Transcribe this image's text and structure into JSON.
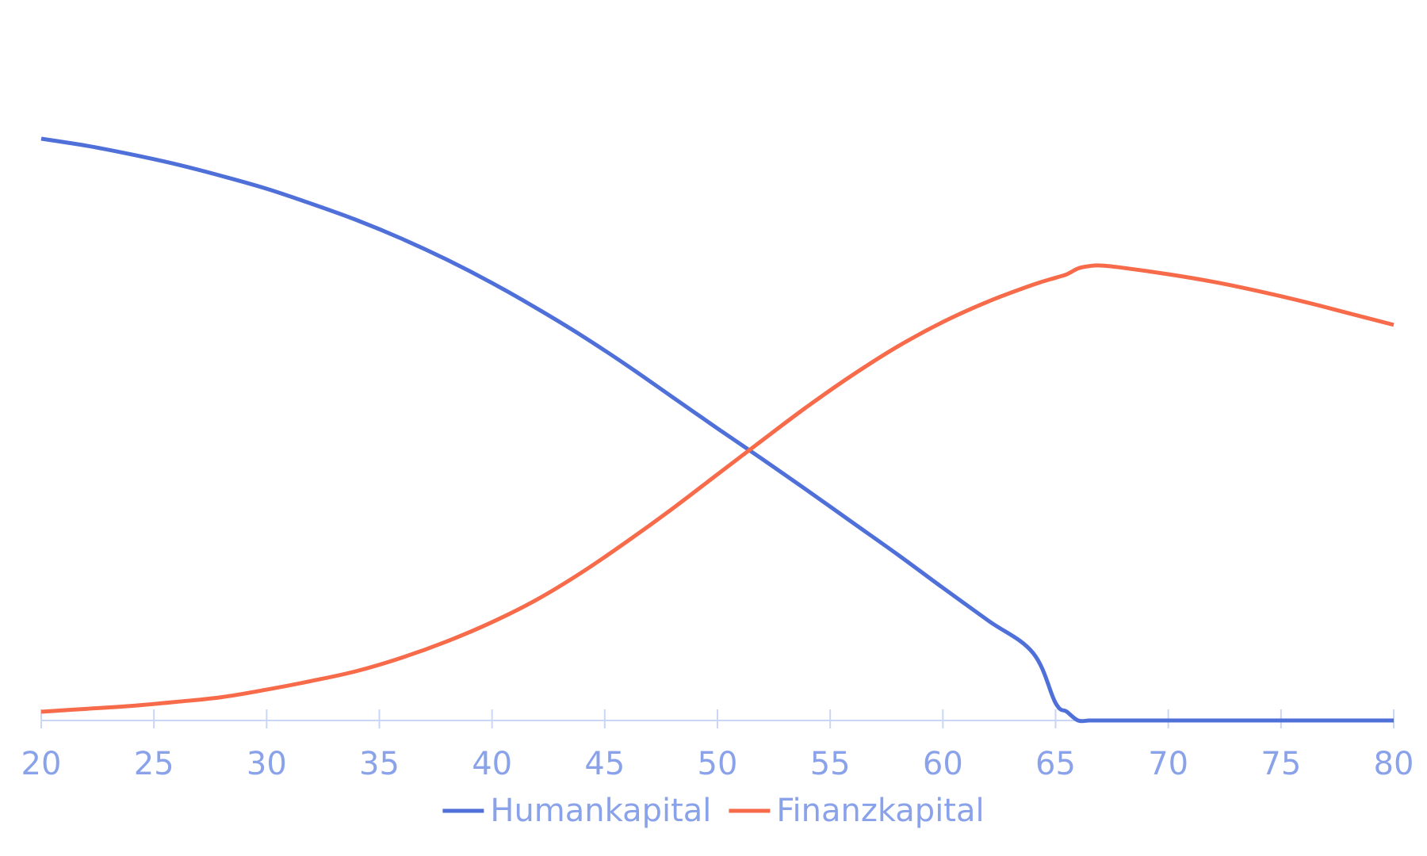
{
  "chart_data": {
    "type": "line",
    "title": "",
    "xlabel": "",
    "ylabel": "",
    "x": [
      20,
      22,
      24,
      26,
      28,
      30,
      32,
      34,
      36,
      38,
      40,
      42,
      44,
      46,
      48,
      50,
      52,
      54,
      56,
      58,
      60,
      62,
      64,
      65,
      65.5,
      66,
      66.5,
      67,
      68,
      70,
      72,
      74,
      76,
      78,
      80
    ],
    "xlim": [
      20,
      80
    ],
    "ylim": [
      0,
      100
    ],
    "x_ticks": [
      "20",
      "25",
      "30",
      "35",
      "40",
      "45",
      "50",
      "55",
      "60",
      "65",
      "70",
      "75",
      "80"
    ],
    "grid": false,
    "legend_position": "bottom",
    "series": [
      {
        "name": "Humankapital",
        "color": "#4f6fd9",
        "values": [
          100,
          98.8,
          97.3,
          95.6,
          93.6,
          91.4,
          88.8,
          86.0,
          82.8,
          79.2,
          75.2,
          70.8,
          66.1,
          61.0,
          55.6,
          50.2,
          44.9,
          39.5,
          34.0,
          28.5,
          22.8,
          17.2,
          11.6,
          3.0,
          1.5,
          0.0,
          0.0,
          0.0,
          0.0,
          0.0,
          0.0,
          0.0,
          0.0,
          0.0,
          0.0
        ]
      },
      {
        "name": "Finanzkapital",
        "color": "#f76b4a",
        "values": [
          1.5,
          2.0,
          2.5,
          3.2,
          4.0,
          5.3,
          6.8,
          8.5,
          10.8,
          13.6,
          16.9,
          20.8,
          25.5,
          30.8,
          36.4,
          42.3,
          48.2,
          54.0,
          59.4,
          64.3,
          68.5,
          72.0,
          74.9,
          76.1,
          76.7,
          77.7,
          78.1,
          78.2,
          77.8,
          76.7,
          75.4,
          73.8,
          72.0,
          70.0,
          68.0
        ]
      }
    ]
  }
}
